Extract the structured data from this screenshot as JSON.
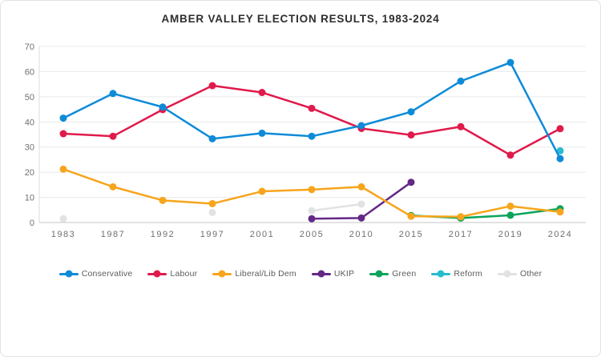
{
  "header": {
    "title": "AMBER VALLEY ELECTION RESULTS, 1983-2024"
  },
  "chart_data": {
    "type": "line",
    "title": "AMBER VALLEY ELECTION RESULTS, 1983-2024",
    "xlabel": "",
    "ylabel": "",
    "categories": [
      "1983",
      "1987",
      "1992",
      "1997",
      "2001",
      "2005",
      "2010",
      "2015",
      "2017",
      "2019",
      "2024"
    ],
    "series": [
      {
        "name": "Conservative",
        "color": "#0e8bd8",
        "values": [
          41.5,
          51.3,
          45.9,
          33.3,
          35.5,
          34.3,
          38.5,
          44.0,
          56.2,
          63.6,
          25.4
        ]
      },
      {
        "name": "Labour",
        "color": "#e01a4b",
        "values": [
          35.3,
          34.3,
          44.9,
          54.4,
          51.7,
          45.4,
          37.4,
          34.8,
          38.1,
          26.8,
          37.3
        ]
      },
      {
        "name": "Liberal/Lib Dem",
        "color": "#f7a51c",
        "values": [
          21.2,
          14.2,
          8.8,
          7.5,
          12.4,
          13.1,
          14.2,
          2.5,
          2.3,
          6.5,
          4.2
        ]
      },
      {
        "name": "UKIP",
        "color": "#642887",
        "values": [
          null,
          null,
          null,
          null,
          null,
          1.5,
          1.8,
          16.0,
          null,
          null,
          null
        ]
      },
      {
        "name": "Green",
        "color": "#0ca45c",
        "values": [
          null,
          null,
          null,
          null,
          null,
          null,
          null,
          2.8,
          1.8,
          2.9,
          5.5
        ]
      },
      {
        "name": "Reform",
        "color": "#29bcce",
        "values": [
          null,
          null,
          null,
          null,
          null,
          null,
          null,
          null,
          null,
          null,
          28.5
        ]
      },
      {
        "name": "Other",
        "color": "#e2e2e2",
        "values": [
          1.5,
          null,
          null,
          4.0,
          null,
          4.7,
          7.3,
          null,
          1.4,
          null,
          null
        ]
      }
    ],
    "ylim": [
      0,
      70
    ],
    "yticks": [
      0,
      10,
      20,
      30,
      40,
      50,
      60,
      70
    ],
    "grid": "horizontal",
    "legend_position": "bottom"
  }
}
